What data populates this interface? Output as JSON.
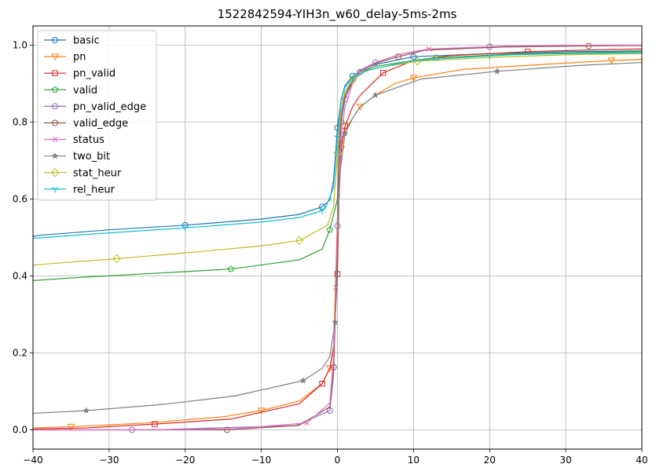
{
  "chart_data": {
    "type": "line",
    "title": "1522842594-YIH3n_w60_delay-5ms-2ms",
    "xlabel": "",
    "ylabel": "",
    "xlim": [
      -40,
      40
    ],
    "ylim": [
      -0.05,
      1.05
    ],
    "xticks": [
      -40,
      -30,
      -20,
      -10,
      0,
      10,
      20,
      30,
      40
    ],
    "xtick_labels": [
      "−40",
      "−30",
      "−20",
      "−10",
      "0",
      "10",
      "20",
      "30",
      "40"
    ],
    "yticks": [
      0.0,
      0.2,
      0.4,
      0.6,
      0.8,
      1.0
    ],
    "ytick_labels": [
      "0.0",
      "0.2",
      "0.4",
      "0.6",
      "0.8",
      "1.0"
    ],
    "grid": true,
    "legend_position": "top-left",
    "series": [
      {
        "name": "basic",
        "color": "#1f77b4",
        "marker": "circle",
        "x": [
          -40,
          -39,
          -30,
          -20,
          -10,
          -5,
          -2,
          -1,
          -0.5,
          0,
          0.5,
          1,
          2,
          3.5,
          5,
          10,
          20,
          30,
          40
        ],
        "y": [
          0.503,
          0.506,
          0.52,
          0.532,
          0.548,
          0.56,
          0.58,
          0.597,
          0.65,
          0.785,
          0.86,
          0.895,
          0.92,
          0.938,
          0.95,
          0.97,
          0.978,
          0.983,
          0.985
        ]
      },
      {
        "name": "pn",
        "color": "#ff7f0e",
        "marker": "triangle_down",
        "x": [
          -40,
          -35,
          -25,
          -15,
          -10,
          -5,
          -2,
          -1,
          -0.5,
          0,
          0.5,
          1,
          2,
          3,
          5,
          7.5,
          10,
          16.5,
          27,
          36,
          40
        ],
        "y": [
          0.005,
          0.008,
          0.018,
          0.034,
          0.05,
          0.075,
          0.12,
          0.16,
          0.22,
          0.55,
          0.73,
          0.78,
          0.81,
          0.84,
          0.87,
          0.9,
          0.915,
          0.937,
          0.95,
          0.96,
          0.963
        ]
      },
      {
        "name": "pn_valid",
        "color": "#d62728",
        "marker": "square",
        "x": [
          -40,
          -33,
          -24,
          -14,
          -5,
          -2,
          -1,
          -0.5,
          0,
          0.2,
          0.5,
          1,
          2,
          3,
          6,
          10,
          15,
          25,
          34,
          40
        ],
        "y": [
          0.002,
          0.005,
          0.015,
          0.028,
          0.068,
          0.12,
          0.16,
          0.21,
          0.405,
          0.595,
          0.74,
          0.79,
          0.84,
          0.87,
          0.928,
          0.96,
          0.973,
          0.983,
          0.988,
          0.99
        ]
      },
      {
        "name": "valid",
        "color": "#2ca02c",
        "marker": "pentagon",
        "x": [
          -40,
          -34,
          -24,
          -14,
          -5,
          -2,
          -1,
          -0.5,
          0,
          0.5,
          1,
          2,
          3,
          5,
          10,
          13,
          23,
          33,
          40
        ],
        "y": [
          0.388,
          0.396,
          0.407,
          0.418,
          0.442,
          0.47,
          0.52,
          0.56,
          0.6,
          0.8,
          0.86,
          0.91,
          0.93,
          0.945,
          0.96,
          0.967,
          0.977,
          0.981,
          0.983
        ]
      },
      {
        "name": "pn_valid_edge",
        "color": "#9467bd",
        "marker": "circle",
        "x": [
          -40,
          -27,
          -24,
          -5.5,
          -1,
          -0.5,
          -0.2,
          0,
          0.2,
          0.5,
          1,
          2,
          3,
          5,
          8,
          11,
          20,
          27,
          34,
          40
        ],
        "y": [
          0.0,
          0.0,
          0.0,
          0.011,
          0.05,
          0.145,
          0.338,
          0.53,
          0.7,
          0.8,
          0.86,
          0.905,
          0.935,
          0.955,
          0.975,
          0.987,
          0.996,
          0.999,
          1.0,
          1.0
        ]
      },
      {
        "name": "valid_edge",
        "color": "#8c564b",
        "marker": "circle",
        "x": [
          -40,
          -24,
          -14.5,
          -5,
          -1,
          -0.5,
          -0.2,
          0,
          0.2,
          0.5,
          1,
          2,
          3,
          5,
          8,
          11.5,
          21.5,
          33,
          40
        ],
        "y": [
          0.0,
          0.0,
          0.0,
          0.012,
          0.06,
          0.163,
          0.357,
          0.547,
          0.73,
          0.82,
          0.87,
          0.91,
          0.93,
          0.953,
          0.97,
          0.987,
          0.995,
          0.998,
          0.999
        ]
      },
      {
        "name": "status",
        "color": "#e377c2",
        "marker": "x",
        "x": [
          -40,
          -28,
          -14,
          -4,
          -1,
          -0.5,
          -0.2,
          0,
          0.3,
          0.5,
          1,
          2,
          3,
          5,
          8,
          12,
          22.5,
          34,
          40
        ],
        "y": [
          0.0,
          0.0,
          0.002,
          0.018,
          0.07,
          0.19,
          0.37,
          0.53,
          0.68,
          0.76,
          0.84,
          0.9,
          0.93,
          0.955,
          0.975,
          0.99,
          0.998,
          1.0,
          1.0
        ]
      },
      {
        "name": "two_bit",
        "color": "#7f7f7f",
        "marker": "star",
        "x": [
          -40,
          -33,
          -23,
          -13.5,
          -4.5,
          -2,
          -1,
          -0.3,
          0,
          0.3,
          1,
          2,
          3,
          5,
          10,
          11,
          21,
          31.5,
          40
        ],
        "y": [
          0.043,
          0.05,
          0.066,
          0.088,
          0.128,
          0.16,
          0.19,
          0.28,
          0.475,
          0.665,
          0.77,
          0.81,
          0.84,
          0.87,
          0.905,
          0.912,
          0.932,
          0.947,
          0.955
        ]
      },
      {
        "name": "stat_heur",
        "color": "#bcbd22",
        "marker": "diamond",
        "x": [
          -40,
          -39,
          -29,
          -20,
          -10,
          -5,
          -1.3,
          -0.5,
          0,
          0.5,
          1,
          2,
          3.5,
          5,
          10.5,
          20,
          30,
          40
        ],
        "y": [
          0.428,
          0.43,
          0.445,
          0.46,
          0.478,
          0.492,
          0.532,
          0.58,
          0.72,
          0.84,
          0.88,
          0.91,
          0.93,
          0.94,
          0.958,
          0.968,
          0.975,
          0.978
        ]
      },
      {
        "name": "rel_heur",
        "color": "#17becf",
        "marker": "tri_down",
        "x": [
          -40,
          -38.5,
          -30,
          -20,
          -10,
          -5,
          -2,
          -1.5,
          -0.5,
          0,
          0.5,
          1,
          2,
          4,
          10,
          20,
          23,
          30,
          40
        ],
        "y": [
          0.498,
          0.5,
          0.512,
          0.525,
          0.54,
          0.552,
          0.57,
          0.58,
          0.63,
          0.76,
          0.86,
          0.89,
          0.915,
          0.935,
          0.96,
          0.972,
          0.975,
          0.978,
          0.98
        ]
      }
    ]
  }
}
